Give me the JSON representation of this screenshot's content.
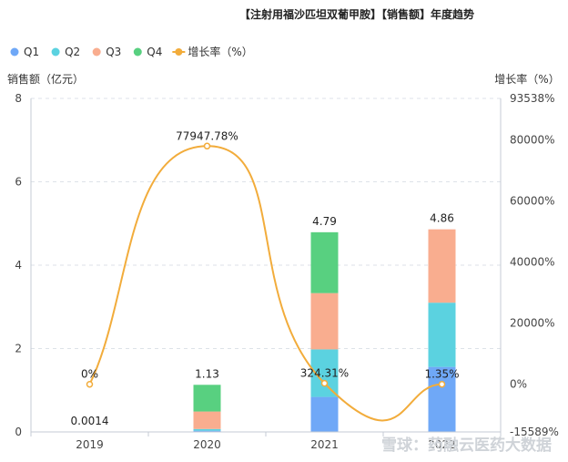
{
  "title": "【注射用福沙匹坦双葡甲胺】【销售额】年度趋势",
  "watermark": "雪球：药融云医药大数据",
  "colors": {
    "Q1": "#6fa8f7",
    "Q2": "#5bd2e0",
    "Q3": "#f9ad8f",
    "Q4": "#58d080",
    "growth": "#f2ac3b",
    "grid": "#dde2e8",
    "axis": "#c4cbd4"
  },
  "chart_data": {
    "type": "bar",
    "stacked": true,
    "categories": [
      "2019",
      "2020",
      "2021",
      "2022"
    ],
    "series": [
      {
        "name": "Q1",
        "values": [
          0.0003,
          0.03,
          0.84,
          1.56
        ]
      },
      {
        "name": "Q2",
        "values": [
          0.0003,
          0.04,
          1.14,
          1.54
        ]
      },
      {
        "name": "Q3",
        "values": [
          0.0004,
          0.42,
          1.35,
          1.76
        ]
      },
      {
        "name": "Q4",
        "values": [
          0.0004,
          0.64,
          1.46,
          0.0
        ]
      }
    ],
    "totals": [
      "0.0014",
      "1.13",
      "4.79",
      "4.86"
    ],
    "line": {
      "name": "增长率（%）",
      "values": [
        0,
        77947.78,
        324.31,
        1.35
      ],
      "labels": [
        "0%",
        "77947.78%",
        "324.31%",
        "1.35%"
      ]
    },
    "ylabel_left": "销售额（亿元）",
    "ylabel_right": "增长率（%）",
    "ylim_left": [
      0,
      8
    ],
    "yticks_left": [
      "0",
      "2",
      "4",
      "6",
      "8"
    ],
    "ylim_right": [
      -15589,
      93538
    ],
    "yticks_right": [
      "-15589%",
      "0%",
      "20000%",
      "40000%",
      "60000%",
      "80000%",
      "93538%"
    ],
    "yticks_right_values": [
      -15589,
      0,
      20000,
      40000,
      60000,
      80000,
      93538
    ],
    "legend": [
      "Q1",
      "Q2",
      "Q3",
      "Q4",
      "增长率（%）"
    ],
    "legend_position": "top-left",
    "grid": true
  }
}
